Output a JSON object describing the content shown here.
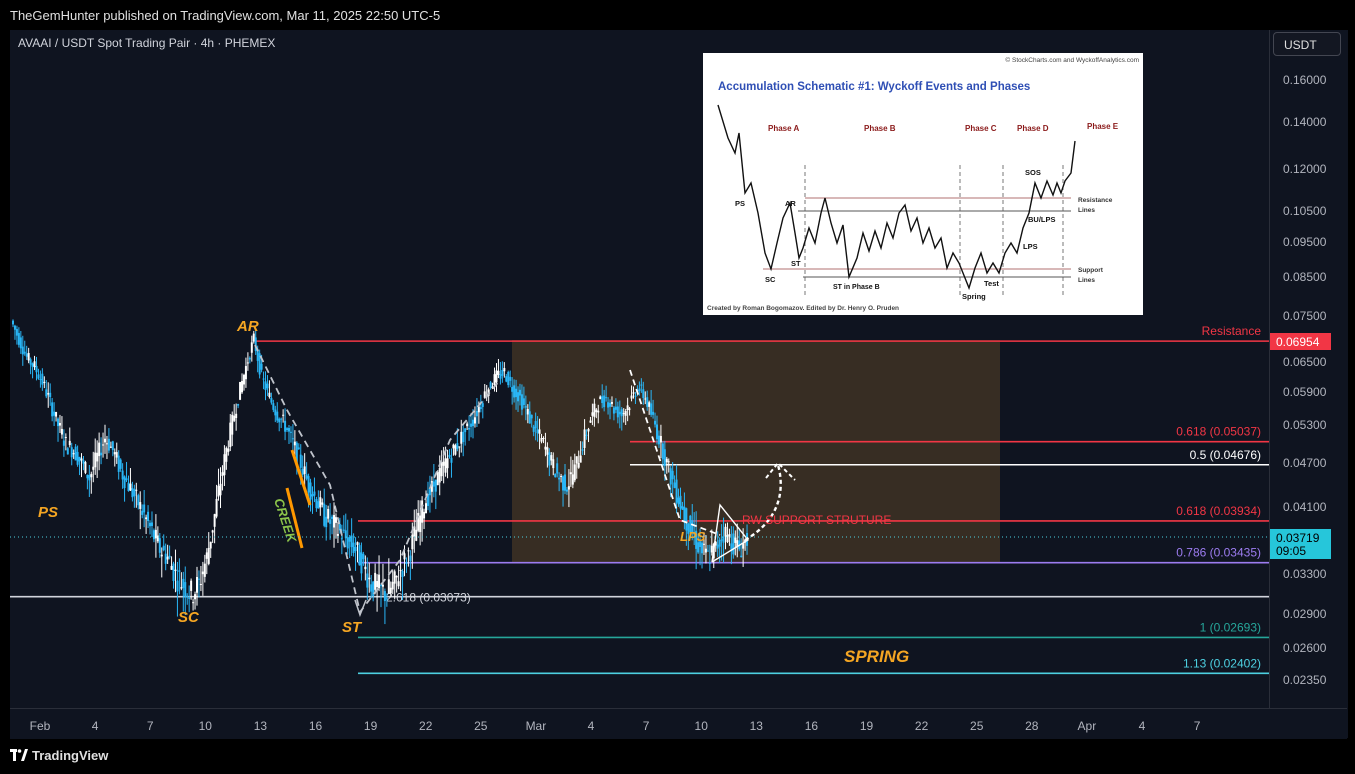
{
  "header": {
    "published": "TheGemHunter published on TradingView.com, Mar 11, 2025 22:50 UTC-5"
  },
  "symbol": "AVAAI / USDT Spot Trading Pair · 4h · PHEMEX",
  "currency_button": "USDT",
  "footer": {
    "brand": "TradingView"
  },
  "chart_data": {
    "type": "candlestick",
    "price_ticks": [
      "0.16000",
      "0.14000",
      "0.12000",
      "0.10500",
      "0.09500",
      "0.08500",
      "0.07500",
      "0.06500",
      "0.05900",
      "0.05300",
      "0.04700",
      "0.04100",
      "0.03300",
      "0.02900",
      "0.02600",
      "0.02350"
    ],
    "price_tick_values": [
      0.16,
      0.14,
      0.12,
      0.105,
      0.095,
      0.085,
      0.075,
      0.065,
      0.059,
      0.053,
      0.047,
      0.041,
      0.033,
      0.029,
      0.026,
      0.0235
    ],
    "time_ticks": [
      "Feb",
      "4",
      "7",
      "10",
      "13",
      "16",
      "19",
      "22",
      "25",
      "Mar",
      "4",
      "7",
      "10",
      "13",
      "16",
      "19",
      "22",
      "25",
      "28",
      "Apr",
      "4",
      "7"
    ],
    "current_price": "0.03719",
    "countdown": "09:05",
    "resistance_tag": "0.06954",
    "levels": [
      {
        "label": "Resistance",
        "value": 0.06954,
        "color": "#f23645"
      },
      {
        "label": "0.618 (0.05037)",
        "value": 0.05037,
        "color": "#f23645"
      },
      {
        "label": "0.5 (0.04676)",
        "value": 0.04676,
        "color": "#ffffff"
      },
      {
        "label": "0.618 (0.03934)",
        "value": 0.03934,
        "color": "#f23645"
      },
      {
        "label": "0.786 (0.03435)",
        "value": 0.03435,
        "color": "#9c7cf0"
      },
      {
        "label": "2.618 (0.03073)",
        "value": 0.03073,
        "color": "#d1d4dc"
      },
      {
        "label": "1 (0.02693)",
        "value": 0.02693,
        "color": "#26a69a"
      },
      {
        "label": "1.13 (0.02402)",
        "value": 0.02402,
        "color": "#4dd0e1"
      }
    ],
    "annotations": [
      "PS",
      "SC",
      "AR",
      "ST",
      "CREEK",
      "SPRING",
      "LPS",
      "RW SUPPORT STRUTURE"
    ],
    "close_series": [
      0.074,
      0.07,
      0.066,
      0.064,
      0.061,
      0.057,
      0.053,
      0.05,
      0.049,
      0.047,
      0.045,
      0.048,
      0.051,
      0.049,
      0.046,
      0.044,
      0.042,
      0.04,
      0.038,
      0.036,
      0.035,
      0.033,
      0.032,
      0.031,
      0.032,
      0.035,
      0.04,
      0.046,
      0.052,
      0.058,
      0.064,
      0.07,
      0.062,
      0.058,
      0.055,
      0.053,
      0.05,
      0.047,
      0.044,
      0.042,
      0.04,
      0.039,
      0.038,
      0.037,
      0.036,
      0.034,
      0.032,
      0.0315,
      0.031,
      0.032,
      0.034,
      0.036,
      0.039,
      0.042,
      0.044,
      0.046,
      0.048,
      0.05,
      0.052,
      0.054,
      0.057,
      0.06,
      0.062,
      0.063,
      0.06,
      0.058,
      0.055,
      0.052,
      0.05,
      0.047,
      0.045,
      0.044,
      0.046,
      0.05,
      0.054,
      0.057,
      0.058,
      0.056,
      0.055,
      0.057,
      0.06,
      0.058,
      0.054,
      0.05,
      0.046,
      0.043,
      0.04,
      0.038,
      0.036,
      0.035,
      0.036,
      0.038,
      0.037,
      0.036,
      0.0372
    ]
  },
  "inset": {
    "credit_top": "© StockCharts.com and WyckoffAnalytics.com",
    "title": "Accumulation Schematic #1: Wyckoff Events and Phases",
    "phases": [
      "Phase A",
      "Phase B",
      "Phase C",
      "Phase D",
      "Phase E"
    ],
    "labels": [
      "PS",
      "AR",
      "ST",
      "SC",
      "ST in Phase B",
      "Spring",
      "Test",
      "SOS",
      "BU/LPS",
      "LPS",
      "Resistance",
      "Lines",
      "Support",
      "Lines"
    ],
    "credit_bottom": "Created by Roman Bogomazov. Edited by Dr. Henry O. Pruden"
  }
}
